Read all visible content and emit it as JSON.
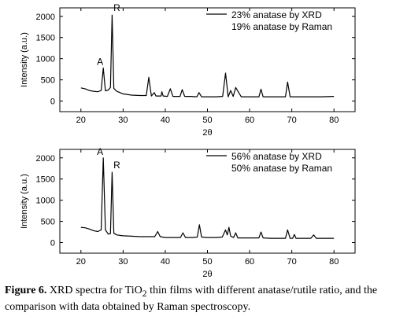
{
  "chart_data": [
    {
      "type": "line",
      "ylabel": "Intensity (a.u.)",
      "xlabel": "2θ",
      "xlim": [
        15,
        85
      ],
      "ylim": [
        -250,
        2200
      ],
      "xticks": [
        20,
        30,
        40,
        50,
        60,
        70,
        80
      ],
      "yticks": [
        0,
        500,
        1000,
        1500,
        2000
      ],
      "legend": {
        "position": "top-right",
        "lines": [
          "23% anatase by XRD",
          "19% anatase by Raman"
        ]
      },
      "annotations": [
        {
          "text": "A",
          "x": 25.3,
          "y": 780
        },
        {
          "text": "R",
          "x": 27.4,
          "y": 2050
        }
      ],
      "series": [
        {
          "x": [
            20,
            21,
            22,
            23,
            24,
            24.8,
            25.3,
            25.8,
            26.5,
            27.0,
            27.4,
            27.8,
            28.5,
            30,
            32,
            34,
            35.5,
            36.1,
            36.7,
            37.4,
            37.8,
            38.3,
            39.0,
            39.2,
            39.5,
            40.5,
            41.2,
            41.8,
            43.5,
            44.0,
            44.6,
            46,
            47.5,
            48.0,
            48.6,
            50,
            52,
            53.6,
            54.3,
            54.9,
            55.5,
            56.1,
            56.7,
            58,
            60,
            62.2,
            62.7,
            63.2,
            65,
            67,
            68.5,
            69.0,
            69.6,
            71,
            73,
            75,
            77,
            80
          ],
          "y": [
            310,
            290,
            250,
            230,
            220,
            250,
            780,
            240,
            260,
            320,
            2030,
            300,
            230,
            170,
            140,
            130,
            130,
            560,
            120,
            200,
            120,
            120,
            120,
            220,
            120,
            110,
            290,
            110,
            110,
            270,
            110,
            110,
            100,
            200,
            100,
            100,
            100,
            110,
            660,
            100,
            250,
            110,
            320,
            100,
            100,
            100,
            280,
            100,
            100,
            100,
            100,
            450,
            100,
            100,
            100,
            100,
            100,
            110
          ]
        }
      ]
    },
    {
      "type": "line",
      "ylabel": "Intensity (a.u.)",
      "xlabel": "2θ",
      "xlim": [
        15,
        85
      ],
      "ylim": [
        -250,
        2200
      ],
      "xticks": [
        20,
        30,
        40,
        50,
        60,
        70,
        80
      ],
      "yticks": [
        0,
        500,
        1000,
        1500,
        2000
      ],
      "legend": {
        "position": "top-right",
        "lines": [
          "56% anatase by XRD",
          "50% anatase by Raman"
        ]
      },
      "annotations": [
        {
          "text": "A",
          "x": 25.3,
          "y": 2000
        },
        {
          "text": "R",
          "x": 27.4,
          "y": 1680
        }
      ],
      "series": [
        {
          "x": [
            20,
            21,
            22,
            23,
            24,
            24.8,
            25.3,
            25.8,
            26.5,
            27.0,
            27.4,
            27.8,
            28.5,
            30,
            32,
            34,
            36,
            37.5,
            38.2,
            38.8,
            40,
            42,
            43.6,
            44.2,
            44.8,
            46.5,
            47.6,
            48.1,
            48.6,
            50,
            52,
            53.5,
            54.3,
            54.7,
            55.1,
            55.5,
            56.2,
            56.7,
            57.2,
            59,
            61,
            62.2,
            62.7,
            63.2,
            65,
            67,
            68.5,
            69.0,
            69.6,
            70.2,
            70.6,
            71.0,
            73,
            74.5,
            75.2,
            75.8,
            77,
            80
          ],
          "y": [
            360,
            350,
            320,
            280,
            260,
            300,
            2000,
            300,
            200,
            210,
            1660,
            220,
            180,
            160,
            150,
            140,
            140,
            140,
            260,
            140,
            120,
            120,
            120,
            230,
            120,
            120,
            130,
            420,
            130,
            120,
            120,
            130,
            300,
            180,
            360,
            150,
            120,
            230,
            110,
            110,
            110,
            110,
            250,
            110,
            100,
            100,
            100,
            300,
            100,
            100,
            190,
            100,
            100,
            100,
            180,
            100,
            100,
            100
          ]
        }
      ]
    }
  ],
  "caption": {
    "label": "Figure 6.",
    "text_before": " XRD spectra for TiO",
    "subscript": "2",
    "text_after": " thin films with different anatase/rutile ratio, and the comparison with data obtained by Raman spectroscopy."
  }
}
